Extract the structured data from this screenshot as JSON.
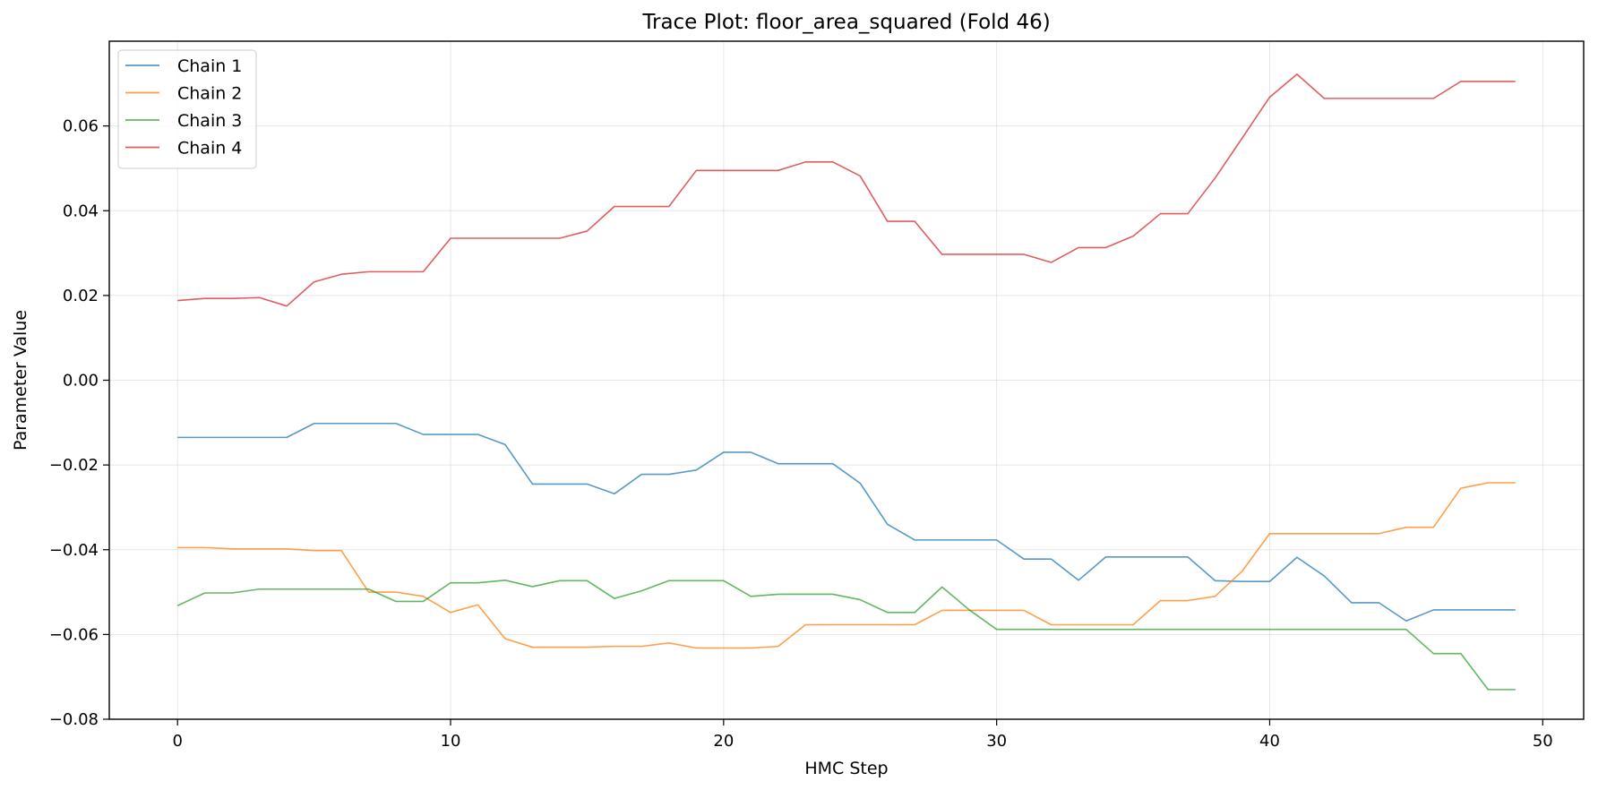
{
  "chart_data": {
    "type": "line",
    "title": "Trace Plot: floor_area_squared (Fold 46)",
    "xlabel": "HMC Step",
    "ylabel": "Parameter Value",
    "xlim": [
      -2.5,
      51.5
    ],
    "ylim": [
      -0.08,
      0.08
    ],
    "xticks": [
      0,
      10,
      20,
      30,
      40,
      50
    ],
    "yticks": [
      -0.08,
      -0.06,
      -0.04,
      -0.02,
      0.0,
      0.02,
      0.04,
      0.06
    ],
    "ytick_labels": [
      "−0.08",
      "−0.06",
      "−0.04",
      "−0.02",
      "0.00",
      "0.02",
      "0.04",
      "0.06"
    ],
    "grid": true,
    "legend_position": "top-left",
    "x": [
      0,
      1,
      2,
      3,
      4,
      5,
      6,
      7,
      8,
      9,
      10,
      11,
      12,
      13,
      14,
      15,
      16,
      17,
      18,
      19,
      20,
      21,
      22,
      23,
      24,
      25,
      26,
      27,
      28,
      29,
      30,
      31,
      32,
      33,
      34,
      35,
      36,
      37,
      38,
      39,
      40,
      41,
      42,
      43,
      44,
      45,
      46,
      47,
      48,
      49
    ],
    "series": [
      {
        "name": "Chain 1",
        "color": "#1f77b4",
        "values": [
          -0.0135,
          -0.0135,
          -0.0135,
          -0.0135,
          -0.0135,
          -0.0102,
          -0.0102,
          -0.0102,
          -0.0102,
          -0.0128,
          -0.0128,
          -0.0128,
          -0.0152,
          -0.0245,
          -0.0245,
          -0.0245,
          -0.0268,
          -0.0222,
          -0.0222,
          -0.0212,
          -0.017,
          -0.017,
          -0.0197,
          -0.0197,
          -0.0197,
          -0.0243,
          -0.034,
          -0.0377,
          -0.0377,
          -0.0377,
          -0.0377,
          -0.0422,
          -0.0422,
          -0.0472,
          -0.0417,
          -0.0417,
          -0.0417,
          -0.0417,
          -0.0473,
          -0.0475,
          -0.0475,
          -0.0418,
          -0.0462,
          -0.0525,
          -0.0525,
          -0.0568,
          -0.0542,
          -0.0542,
          -0.0542,
          -0.0542
        ]
      },
      {
        "name": "Chain 2",
        "color": "#ff7f0e",
        "values": [
          -0.0395,
          -0.0395,
          -0.0398,
          -0.0398,
          -0.0398,
          -0.0402,
          -0.0402,
          -0.05,
          -0.05,
          -0.051,
          -0.0548,
          -0.053,
          -0.061,
          -0.063,
          -0.063,
          -0.063,
          -0.0628,
          -0.0628,
          -0.062,
          -0.0632,
          -0.0632,
          -0.0632,
          -0.0628,
          -0.0577,
          -0.0577,
          -0.0577,
          -0.0577,
          -0.0577,
          -0.0543,
          -0.0543,
          -0.0543,
          -0.0543,
          -0.0577,
          -0.0577,
          -0.0577,
          -0.0577,
          -0.052,
          -0.052,
          -0.051,
          -0.045,
          -0.0362,
          -0.0362,
          -0.0362,
          -0.0362,
          -0.0362,
          -0.0347,
          -0.0347,
          -0.0255,
          -0.0242,
          -0.0242
        ]
      },
      {
        "name": "Chain 3",
        "color": "#2ca02c",
        "values": [
          -0.0532,
          -0.0502,
          -0.0502,
          -0.0493,
          -0.0493,
          -0.0493,
          -0.0493,
          -0.0493,
          -0.0522,
          -0.0522,
          -0.0478,
          -0.0478,
          -0.0472,
          -0.0487,
          -0.0473,
          -0.0473,
          -0.0515,
          -0.0497,
          -0.0473,
          -0.0473,
          -0.0473,
          -0.051,
          -0.0505,
          -0.0505,
          -0.0505,
          -0.0518,
          -0.0548,
          -0.0548,
          -0.0488,
          -0.0542,
          -0.0588,
          -0.0588,
          -0.0588,
          -0.0588,
          -0.0588,
          -0.0588,
          -0.0588,
          -0.0588,
          -0.0588,
          -0.0588,
          -0.0588,
          -0.0588,
          -0.0588,
          -0.0588,
          -0.0588,
          -0.0588,
          -0.0645,
          -0.0645,
          -0.073,
          -0.073
        ]
      },
      {
        "name": "Chain 4",
        "color": "#d62728",
        "values": [
          0.0188,
          0.0193,
          0.0193,
          0.0195,
          0.0175,
          0.0232,
          0.025,
          0.0256,
          0.0256,
          0.0256,
          0.0335,
          0.0335,
          0.0335,
          0.0335,
          0.0335,
          0.0352,
          0.041,
          0.041,
          0.041,
          0.0495,
          0.0495,
          0.0495,
          0.0495,
          0.0515,
          0.0515,
          0.0482,
          0.0375,
          0.0375,
          0.0297,
          0.0297,
          0.0297,
          0.0297,
          0.0278,
          0.0313,
          0.0313,
          0.034,
          0.0393,
          0.0393,
          0.0477,
          0.0572,
          0.0668,
          0.0722,
          0.0665,
          0.0665,
          0.0665,
          0.0665,
          0.0665,
          0.0705,
          0.0705,
          0.0705
        ]
      }
    ]
  }
}
